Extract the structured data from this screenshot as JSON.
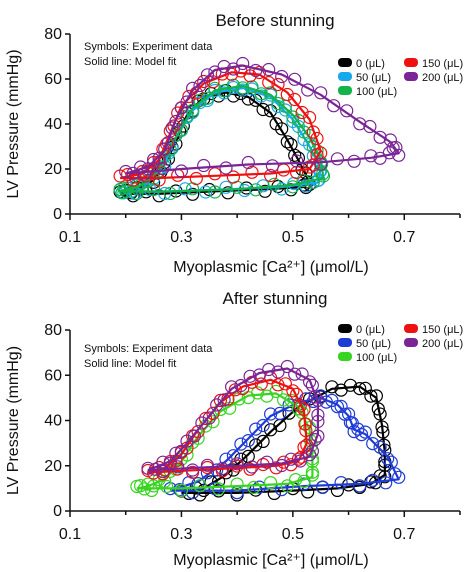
{
  "chart_data": [
    {
      "type": "line",
      "title": "Before stunning",
      "xlabel": "Myoplasmic [Ca²⁺] (μmol/L)",
      "ylabel": "LV Pressure (mmHg)",
      "xlim": [
        0.1,
        0.8
      ],
      "ylim": [
        0,
        80
      ],
      "xticks": [
        "0.1",
        "0.3",
        "0.5",
        "0.7"
      ],
      "yticks": [
        "0",
        "20",
        "40",
        "60",
        "80"
      ],
      "notes": [
        "Symbols: Experiment data",
        "Solid line: Model fit"
      ],
      "legend_position": "top-right",
      "series": [
        {
          "name": "0 (μL)",
          "color": "#000000",
          "points": [
            [
              0.19,
              9
            ],
            [
              0.26,
              9
            ],
            [
              0.35,
              10
            ],
            [
              0.45,
              11
            ],
            [
              0.52,
              12
            ],
            [
              0.53,
              14
            ],
            [
              0.51,
              24
            ],
            [
              0.49,
              33
            ],
            [
              0.46,
              45
            ],
            [
              0.42,
              52
            ],
            [
              0.38,
              54
            ],
            [
              0.34,
              52
            ],
            [
              0.31,
              44
            ],
            [
              0.29,
              32
            ],
            [
              0.27,
              22
            ],
            [
              0.25,
              15
            ],
            [
              0.22,
              11
            ],
            [
              0.19,
              9
            ]
          ]
        },
        {
          "name": "50 (μL)",
          "color": "#17a9ec",
          "points": [
            [
              0.19,
              10
            ],
            [
              0.27,
              10
            ],
            [
              0.38,
              11
            ],
            [
              0.48,
              12
            ],
            [
              0.545,
              14
            ],
            [
              0.55,
              20
            ],
            [
              0.53,
              30
            ],
            [
              0.5,
              42
            ],
            [
              0.46,
              52
            ],
            [
              0.41,
              56
            ],
            [
              0.36,
              54
            ],
            [
              0.32,
              46
            ],
            [
              0.29,
              34
            ],
            [
              0.27,
              22
            ],
            [
              0.24,
              14
            ],
            [
              0.21,
              11
            ],
            [
              0.19,
              10
            ]
          ]
        },
        {
          "name": "100 (μL)",
          "color": "#14b24a",
          "points": [
            [
              0.19,
              10
            ],
            [
              0.28,
              10
            ],
            [
              0.4,
              11
            ],
            [
              0.5,
              13
            ],
            [
              0.555,
              16
            ],
            [
              0.55,
              24
            ],
            [
              0.53,
              34
            ],
            [
              0.5,
              44
            ],
            [
              0.46,
              53
            ],
            [
              0.41,
              57
            ],
            [
              0.36,
              55
            ],
            [
              0.32,
              47
            ],
            [
              0.29,
              34
            ],
            [
              0.26,
              20
            ],
            [
              0.23,
              13
            ],
            [
              0.2,
              11
            ],
            [
              0.19,
              10
            ]
          ]
        },
        {
          "name": "150 (μL)",
          "color": "#ee1111",
          "points": [
            [
              0.19,
              16
            ],
            [
              0.26,
              16
            ],
            [
              0.36,
              17
            ],
            [
              0.46,
              18
            ],
            [
              0.53,
              20
            ],
            [
              0.55,
              28
            ],
            [
              0.53,
              42
            ],
            [
              0.49,
              54
            ],
            [
              0.44,
              62
            ],
            [
              0.39,
              63
            ],
            [
              0.34,
              58
            ],
            [
              0.3,
              48
            ],
            [
              0.28,
              36
            ],
            [
              0.26,
              24
            ],
            [
              0.23,
              18
            ],
            [
              0.19,
              16
            ]
          ]
        },
        {
          "name": "200 (μL)",
          "color": "#7a2596",
          "points": [
            [
              0.2,
              18
            ],
            [
              0.3,
              20
            ],
            [
              0.42,
              22
            ],
            [
              0.55,
              23
            ],
            [
              0.64,
              25
            ],
            [
              0.69,
              27
            ],
            [
              0.675,
              32
            ],
            [
              0.62,
              41
            ],
            [
              0.55,
              53
            ],
            [
              0.48,
              62
            ],
            [
              0.41,
              66
            ],
            [
              0.36,
              64
            ],
            [
              0.32,
              55
            ],
            [
              0.29,
              42
            ],
            [
              0.27,
              28
            ],
            [
              0.24,
              21
            ],
            [
              0.2,
              18
            ]
          ]
        }
      ]
    },
    {
      "type": "line",
      "title": "After stunning",
      "xlabel": "Myoplasmic [Ca²⁺] (μmol/L)",
      "ylabel": "LV Pressure (mmHg)",
      "xlim": [
        0.1,
        0.8
      ],
      "ylim": [
        0,
        80
      ],
      "xticks": [
        "0.1",
        "0.3",
        "0.5",
        "0.7"
      ],
      "yticks": [
        "0",
        "20",
        "40",
        "60",
        "80"
      ],
      "notes": [
        "Symbols: Experiment data",
        "Solid line: Model fit"
      ],
      "legend_position": "top-right",
      "series": [
        {
          "name": "0 (μL)",
          "color": "#000000",
          "points": [
            [
              0.3,
              8
            ],
            [
              0.4,
              8
            ],
            [
              0.5,
              9
            ],
            [
              0.58,
              10
            ],
            [
              0.64,
              12
            ],
            [
              0.665,
              16
            ],
            [
              0.665,
              26
            ],
            [
              0.66,
              38
            ],
            [
              0.65,
              50
            ],
            [
              0.62,
              55
            ],
            [
              0.57,
              54
            ],
            [
              0.51,
              46
            ],
            [
              0.46,
              35
            ],
            [
              0.42,
              25
            ],
            [
              0.38,
              16
            ],
            [
              0.34,
              10
            ],
            [
              0.3,
              8
            ]
          ]
        },
        {
          "name": "50 (μL)",
          "color": "#1f3bd6",
          "points": [
            [
              0.28,
              9
            ],
            [
              0.4,
              9
            ],
            [
              0.52,
              11
            ],
            [
              0.62,
              12
            ],
            [
              0.69,
              14
            ],
            [
              0.67,
              24
            ],
            [
              0.63,
              34
            ],
            [
              0.61,
              36
            ],
            [
              0.6,
              42
            ],
            [
              0.58,
              47
            ],
            [
              0.55,
              50
            ],
            [
              0.51,
              48
            ],
            [
              0.46,
              42
            ],
            [
              0.42,
              32
            ],
            [
              0.38,
              22
            ],
            [
              0.33,
              13
            ],
            [
              0.28,
              9
            ]
          ]
        },
        {
          "name": "100 (μL)",
          "color": "#39d422",
          "points": [
            [
              0.22,
              10
            ],
            [
              0.3,
              10
            ],
            [
              0.4,
              11
            ],
            [
              0.49,
              12
            ],
            [
              0.535,
              15
            ],
            [
              0.535,
              24
            ],
            [
              0.53,
              36
            ],
            [
              0.51,
              46
            ],
            [
              0.47,
              52
            ],
            [
              0.42,
              51
            ],
            [
              0.37,
              44
            ],
            [
              0.33,
              33
            ],
            [
              0.3,
              22
            ],
            [
              0.27,
              14
            ],
            [
              0.24,
              11
            ],
            [
              0.22,
              10
            ]
          ]
        },
        {
          "name": "150 (μL)",
          "color": "#ee1111",
          "points": [
            [
              0.24,
              17
            ],
            [
              0.32,
              18
            ],
            [
              0.4,
              19
            ],
            [
              0.47,
              20
            ],
            [
              0.51,
              22
            ],
            [
              0.525,
              30
            ],
            [
              0.52,
              44
            ],
            [
              0.5,
              54
            ],
            [
              0.46,
              58
            ],
            [
              0.41,
              55
            ],
            [
              0.37,
              48
            ],
            [
              0.33,
              36
            ],
            [
              0.3,
              25
            ],
            [
              0.27,
              19
            ],
            [
              0.24,
              17
            ]
          ]
        },
        {
          "name": "200 (μL)",
          "color": "#7a2596",
          "points": [
            [
              0.24,
              18
            ],
            [
              0.32,
              19
            ],
            [
              0.4,
              20
            ],
            [
              0.48,
              21
            ],
            [
              0.53,
              24
            ],
            [
              0.545,
              34
            ],
            [
              0.545,
              48
            ],
            [
              0.53,
              58
            ],
            [
              0.49,
              63
            ],
            [
              0.44,
              61
            ],
            [
              0.39,
              54
            ],
            [
              0.35,
              42
            ],
            [
              0.31,
              30
            ],
            [
              0.28,
              22
            ],
            [
              0.24,
              18
            ]
          ]
        }
      ]
    }
  ]
}
